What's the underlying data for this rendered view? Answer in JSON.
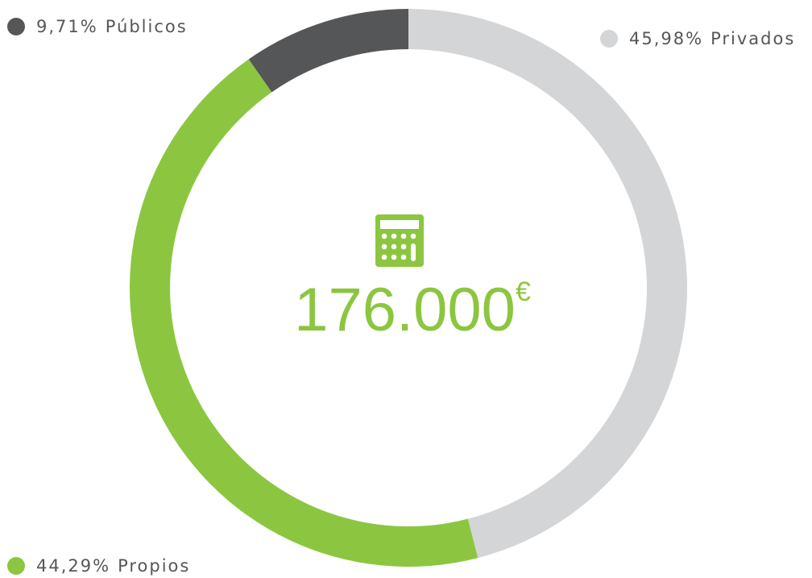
{
  "chart_data": {
    "type": "donut",
    "categories": [
      "Privados",
      "Propios",
      "Públicos"
    ],
    "values": [
      45.98,
      44.29,
      9.71
    ],
    "value_labels": [
      "45,98%",
      "44,29%",
      "9,71%"
    ],
    "colors": [
      "#d4d5d7",
      "#8cc640",
      "#555658"
    ],
    "center_value": "176.000",
    "center_unit": "€"
  }
}
